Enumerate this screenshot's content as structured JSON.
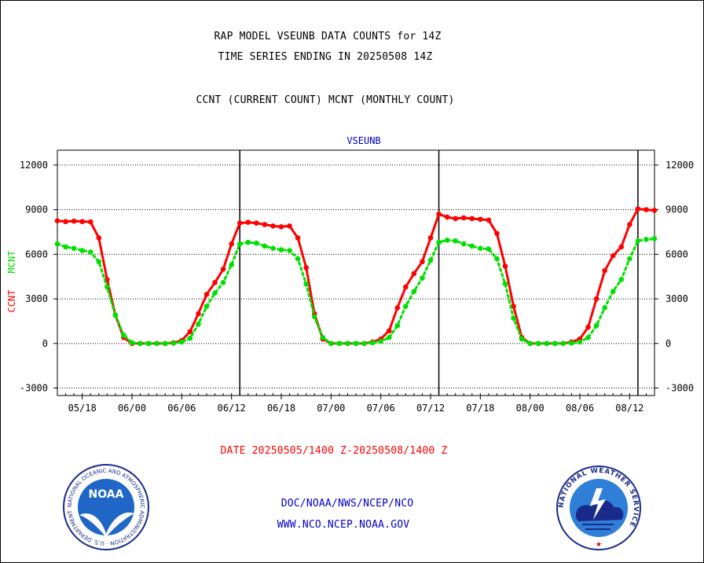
{
  "header": {
    "title_line1": "RAP MODEL VSEUNB DATA COUNTS for 14Z",
    "title_line2": "TIME SERIES ENDING IN 20250508 14Z",
    "subtitle": "CCNT (CURRENT COUNT) MCNT (MONTHLY COUNT)"
  },
  "footer": {
    "date_range": "DATE 20250505/1400 Z-20250508/1400 Z",
    "link1": "DOC/NOAA/NWS/NCEP/NCO",
    "link2": "WWW.NCO.NCEP.NOAA.GOV"
  },
  "logos": {
    "noaa_text": "NOAA",
    "noaa_ring_text": "NATIONAL OCEANIC AND ATMOSPHERIC ADMINISTRATION · U.S. DEPARTMENT OF COMMERCE ·",
    "nws_ring_text": "NATIONAL WEATHER SERVICE"
  },
  "colors": {
    "ccnt": "#ff0000",
    "mcnt": "#00e000",
    "station": "#0000cc",
    "date_text": "#ff0000",
    "link_text": "#0000cc"
  },
  "chart_data": {
    "type": "line",
    "title": "VSEUNB",
    "ylabel_left": [
      "CCNT",
      "MCNT"
    ],
    "ylim": [
      -3500,
      13000
    ],
    "xlim": [
      0,
      72
    ],
    "yticks": [
      -3000,
      0,
      3000,
      6000,
      9000,
      12000
    ],
    "grid": true,
    "x_ticks": [
      {
        "x": 3,
        "label": "05/18"
      },
      {
        "x": 9,
        "label": "06/00"
      },
      {
        "x": 15,
        "label": "06/06"
      },
      {
        "x": 21,
        "label": "06/12"
      },
      {
        "x": 27,
        "label": "06/18"
      },
      {
        "x": 33,
        "label": "07/00"
      },
      {
        "x": 39,
        "label": "07/06"
      },
      {
        "x": 45,
        "label": "07/12"
      },
      {
        "x": 51,
        "label": "07/18"
      },
      {
        "x": 57,
        "label": "08/00"
      },
      {
        "x": 63,
        "label": "08/06"
      },
      {
        "x": 69,
        "label": "08/12"
      }
    ],
    "day_markers": [
      22,
      46,
      70
    ],
    "series": [
      {
        "name": "CCNT",
        "style": "solid",
        "x": [
          0,
          1,
          2,
          3,
          4,
          5,
          6,
          7,
          8,
          9,
          10,
          11,
          12,
          13,
          14,
          15,
          16,
          17,
          18,
          19,
          20,
          21,
          22,
          23,
          24,
          25,
          26,
          27,
          28,
          29,
          30,
          31,
          32,
          33,
          34,
          35,
          36,
          37,
          38,
          39,
          40,
          41,
          42,
          43,
          44,
          45,
          46,
          47,
          48,
          49,
          50,
          51,
          52,
          53,
          54,
          55,
          56,
          57,
          58,
          59,
          60,
          61,
          62,
          63,
          64,
          65,
          66,
          67,
          68,
          69,
          70,
          71,
          72
        ],
        "values": [
          8250,
          8200,
          8230,
          8200,
          8180,
          7100,
          4300,
          1900,
          400,
          0,
          0,
          0,
          0,
          0,
          50,
          200,
          800,
          2000,
          3300,
          4100,
          5000,
          6700,
          8100,
          8150,
          8100,
          8000,
          7900,
          7850,
          7900,
          7100,
          5100,
          2000,
          300,
          0,
          0,
          0,
          0,
          0,
          100,
          300,
          850,
          2400,
          3800,
          4700,
          5500,
          7100,
          8700,
          8500,
          8400,
          8450,
          8400,
          8350,
          8300,
          7400,
          5200,
          2500,
          400,
          0,
          0,
          0,
          0,
          0,
          100,
          300,
          1100,
          3000,
          4900,
          5900,
          6500,
          8000,
          9050,
          9000,
          8950
        ]
      },
      {
        "name": "MCNT",
        "style": "dotted",
        "x": [
          0,
          1,
          2,
          3,
          4,
          5,
          6,
          7,
          8,
          9,
          10,
          11,
          12,
          13,
          14,
          15,
          16,
          17,
          18,
          19,
          20,
          21,
          22,
          23,
          24,
          25,
          26,
          27,
          28,
          29,
          30,
          31,
          32,
          33,
          34,
          35,
          36,
          37,
          38,
          39,
          40,
          41,
          42,
          43,
          44,
          45,
          46,
          47,
          48,
          49,
          50,
          51,
          52,
          53,
          54,
          55,
          56,
          57,
          58,
          59,
          60,
          61,
          62,
          63,
          64,
          65,
          66,
          67,
          68,
          69,
          70,
          71,
          72
        ],
        "values": [
          6700,
          6500,
          6400,
          6250,
          6150,
          5500,
          3800,
          1900,
          550,
          50,
          0,
          0,
          0,
          0,
          20,
          100,
          350,
          1300,
          2500,
          3400,
          4100,
          5300,
          6700,
          6800,
          6750,
          6550,
          6400,
          6300,
          6250,
          5700,
          4000,
          1800,
          400,
          0,
          0,
          0,
          0,
          0,
          50,
          150,
          400,
          1200,
          2500,
          3500,
          4400,
          5600,
          6800,
          6950,
          6900,
          6700,
          6550,
          6400,
          6350,
          5700,
          4000,
          1700,
          300,
          0,
          0,
          0,
          0,
          0,
          30,
          100,
          400,
          1200,
          2400,
          3500,
          4300,
          5700,
          6900,
          7000,
          7050
        ]
      }
    ]
  }
}
